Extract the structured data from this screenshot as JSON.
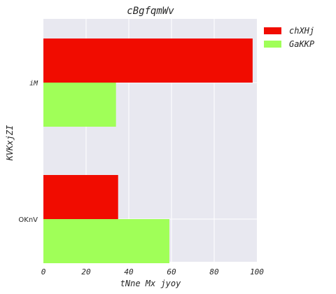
{
  "chart_data": {
    "type": "bar",
    "orientation": "horizontal",
    "title": "cBgfqmWv",
    "xlabel": "tNne Mx jyoy",
    "ylabel": "KVKxjZI",
    "categories": [
      "iM",
      "OKnV"
    ],
    "series": [
      {
        "name": "chXHj",
        "color": "#f10c00",
        "values": [
          98,
          35
        ]
      },
      {
        "name": "GaKKP",
        "color": "#a0ff58",
        "values": [
          34,
          59
        ]
      }
    ],
    "xlim": [
      0,
      100
    ],
    "xticks": [
      0,
      20,
      40,
      60,
      80,
      100
    ],
    "grid": true,
    "legend": "outside-top-right",
    "background": "#e8e8f0"
  }
}
